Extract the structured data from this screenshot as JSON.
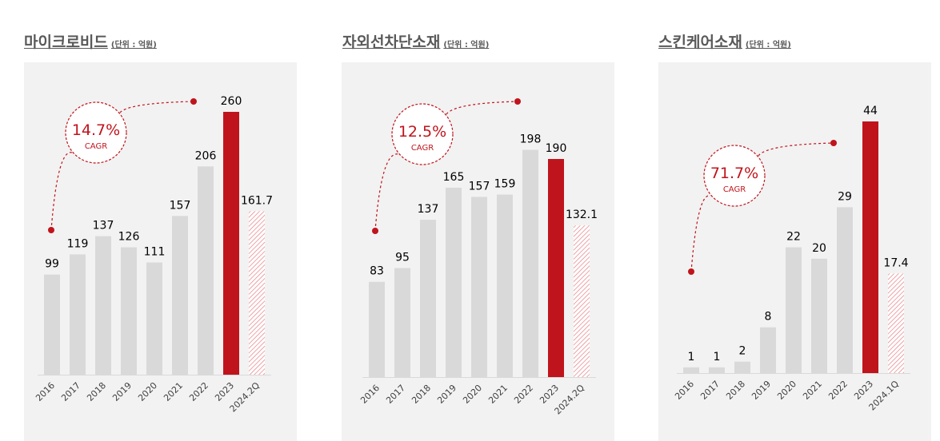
{
  "colors": {
    "bar": "#d9d9d9",
    "highlight": "#c0141c",
    "forecast_hatch": "#e8858a",
    "text": "#000000",
    "title": "#595959",
    "panel_bg": "#f2f2f2"
  },
  "chart_data": [
    {
      "type": "bar",
      "title": "마이크로비드",
      "unit": "(단위 : 억원)",
      "categories": [
        "2016",
        "2017",
        "2018",
        "2019",
        "2020",
        "2021",
        "2022",
        "2023",
        "2024.2Q"
      ],
      "values": [
        99,
        119,
        137,
        126,
        111,
        157,
        206,
        260,
        161.7
      ],
      "value_labels": [
        "99",
        "119",
        "137",
        "126",
        "111",
        "157",
        "206",
        "260",
        "161.7"
      ],
      "highlight_category": "2023",
      "forecast_category": "2024.2Q",
      "ylim": [
        0,
        290
      ],
      "cagr": {
        "value": "14.7%",
        "label": "CAGR"
      }
    },
    {
      "type": "bar",
      "title": "자외선차단소재",
      "unit": "(단위 : 억원)",
      "categories": [
        "2016",
        "2017",
        "2018",
        "2019",
        "2020",
        "2021",
        "2022",
        "2023",
        "2024.2Q"
      ],
      "values": [
        83,
        95,
        137,
        165,
        157,
        159,
        198,
        190,
        132.1
      ],
      "value_labels": [
        "83",
        "95",
        "137",
        "165",
        "157",
        "159",
        "198",
        "190",
        "132.1"
      ],
      "highlight_category": "2023",
      "forecast_category": "2024.2Q",
      "ylim": [
        0,
        237
      ],
      "cagr": {
        "value": "12.5%",
        "label": "CAGR"
      }
    },
    {
      "type": "bar",
      "title": "스킨케어소재",
      "unit": "(단위 : 억원)",
      "categories": [
        "2016",
        "2017",
        "2018",
        "2019",
        "2020",
        "2021",
        "2022",
        "2023",
        "2024.1Q"
      ],
      "values": [
        1,
        1,
        2,
        8,
        22,
        20,
        29,
        44,
        17.4
      ],
      "value_labels": [
        "1",
        "1",
        "2",
        "8",
        "22",
        "20",
        "29",
        "44",
        "17.4"
      ],
      "highlight_category": "2023",
      "forecast_category": "2024.1Q",
      "ylim": [
        0,
        49
      ],
      "cagr": {
        "value": "71.7%",
        "label": "CAGR"
      }
    }
  ]
}
